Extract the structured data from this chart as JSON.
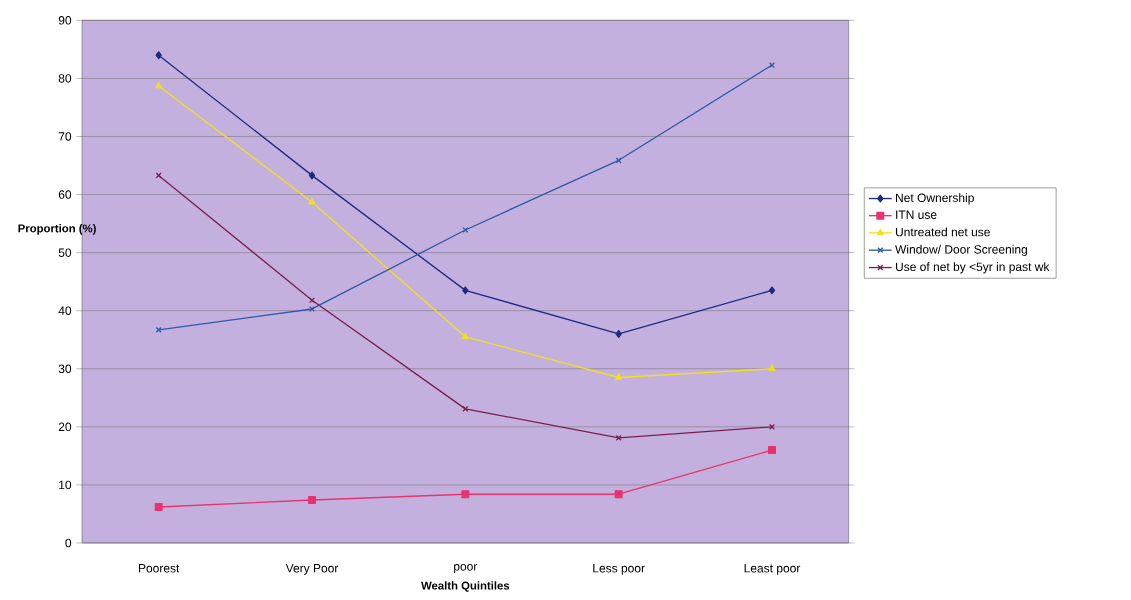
{
  "chart_data": {
    "type": "line",
    "xlabel": "Wealth Quintiles",
    "ylabel": "Proportion (%)",
    "categories": [
      "Poorest",
      "Very Poor",
      "poor",
      "Less poor",
      "Least poor"
    ],
    "series": [
      {
        "name": "Net Ownership",
        "color": "#1f2a80",
        "marker": "diamond",
        "values": [
          84.0,
          63.3,
          43.5,
          36.0,
          43.5
        ]
      },
      {
        "name": "ITN use",
        "color": "#e8336e",
        "marker": "square",
        "values": [
          6.2,
          7.4,
          8.4,
          8.4,
          16.0
        ]
      },
      {
        "name": "Untreated net use",
        "color": "#f0e020",
        "marker": "triangle",
        "values": [
          78.7,
          58.7,
          35.5,
          28.5,
          30.0
        ]
      },
      {
        "name": "Window/ Door Screening",
        "color": "#2e5aa8",
        "marker": "cross",
        "values": [
          36.7,
          40.3,
          53.9,
          65.9,
          82.3
        ]
      },
      {
        "name": "Use of net by <5yr in past wk",
        "color": "#7a1e50",
        "marker": "cross",
        "values": [
          63.3,
          41.8,
          23.1,
          18.1,
          20.0
        ]
      }
    ],
    "ylim": [
      0,
      90
    ],
    "yticks": [
      0,
      10,
      20,
      30,
      40,
      50,
      60,
      70,
      80,
      90
    ],
    "grid": "y",
    "legend": "right"
  }
}
